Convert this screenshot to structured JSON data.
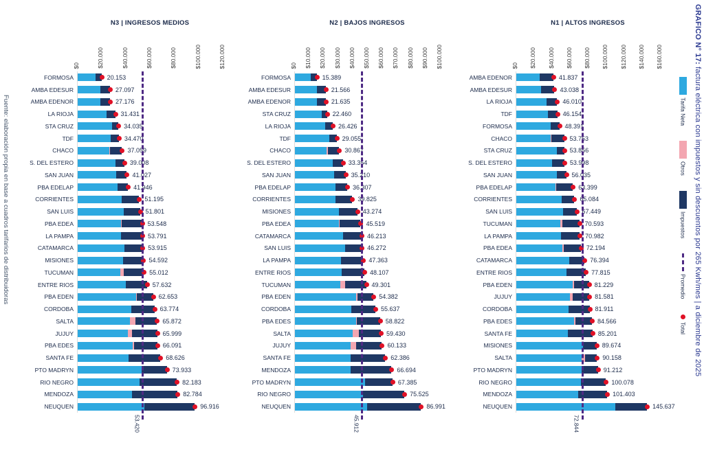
{
  "source_note": "Fuente: elaboración propia en base a cuadros tarifarios de distribuidoras",
  "side_title": {
    "bold": "GRAFICO N° 17: ",
    "rest": "factura eléctrica con impuestos y sin descuentos por 265 Kwh/mes | a diciembre de 2025"
  },
  "colors": {
    "tarifa_neta": "#2ea9e0",
    "otros": "#f3a6b1",
    "impuestos": "#1f3864",
    "total_dot": "#e01126",
    "promedio_line": "#4e2a84",
    "title_text": "#1b2a4a",
    "side_title_text": "#2b3990",
    "source_text": "#44546a"
  },
  "legend": {
    "items": [
      {
        "label": "Tarifa Neta",
        "swatch": "rect",
        "color": "#2ea9e0"
      },
      {
        "label": "Otros",
        "swatch": "rect",
        "color": "#f3a6b1"
      },
      {
        "label": "Impuestos",
        "swatch": "rect",
        "color": "#1f3864"
      },
      {
        "label": "Promedio",
        "swatch": "dashed-line",
        "color": "#4e2a84"
      },
      {
        "label": "Total",
        "swatch": "dot",
        "color": "#e01126"
      }
    ]
  },
  "chart_data": [
    {
      "type": "bar",
      "orientation": "horizontal",
      "stacked": true,
      "title": "N3 | INGRESOS MEDIOS",
      "series_names": [
        "Tarifa Neta",
        "Otros",
        "Impuestos"
      ],
      "axis_max": 120000,
      "axis_step": 20000,
      "tick_labels": [
        "$0",
        "$20.000",
        "$40.000",
        "$60.000",
        "$80.000",
        "$100.000",
        "$120.000"
      ],
      "promedio": 53420,
      "promedio_label": "53.420",
      "rows": [
        {
          "label": "FORMOSA",
          "total": 20153,
          "total_label": "20.153",
          "neta_est": 15000,
          "otros_est": 0
        },
        {
          "label": "AMBA EDESUR",
          "total": 27097,
          "total_label": "27.097",
          "neta_est": 19000,
          "otros_est": 0
        },
        {
          "label": "AMBA EDENOR",
          "total": 27176,
          "total_label": "27.176",
          "neta_est": 19000,
          "otros_est": 0
        },
        {
          "label": "LA RIOJA",
          "total": 31431,
          "total_label": "31.431",
          "neta_est": 24500,
          "otros_est": 0
        },
        {
          "label": "STA CRUZ",
          "total": 34035,
          "total_label": "34.035",
          "neta_est": 29000,
          "otros_est": 0
        },
        {
          "label": "TDF",
          "total": 34470,
          "total_label": "34.470",
          "neta_est": 28000,
          "otros_est": 0
        },
        {
          "label": "CHACO",
          "total": 37059,
          "total_label": "37.059",
          "neta_est": 26500,
          "otros_est": 800
        },
        {
          "label": "S. DEL ESTERO",
          "total": 39008,
          "total_label": "39.008",
          "neta_est": 31500,
          "otros_est": 0
        },
        {
          "label": "SAN JUAN",
          "total": 41027,
          "total_label": "41.027",
          "neta_est": 32500,
          "otros_est": 0
        },
        {
          "label": "PBA EDELAP",
          "total": 41946,
          "total_label": "41.946",
          "neta_est": 33500,
          "otros_est": 0
        },
        {
          "label": "CORRIENTES",
          "total": 51195,
          "total_label": "51.195",
          "neta_est": 37000,
          "otros_est": 0
        },
        {
          "label": "SAN LUIS",
          "total": 51801,
          "total_label": "51.801",
          "neta_est": 38500,
          "otros_est": 0
        },
        {
          "label": "PBA EDEA",
          "total": 53548,
          "total_label": "53.548",
          "neta_est": 36500,
          "otros_est": 500
        },
        {
          "label": "LA PAMPA",
          "total": 53791,
          "total_label": "53.791",
          "neta_est": 36000,
          "otros_est": 0
        },
        {
          "label": "CATAMARCA",
          "total": 53915,
          "total_label": "53.915",
          "neta_est": 39000,
          "otros_est": 0
        },
        {
          "label": "MISIONES",
          "total": 54592,
          "total_label": "54.592",
          "neta_est": 38000,
          "otros_est": 0
        },
        {
          "label": "TUCUMAN",
          "total": 55012,
          "total_label": "55.012",
          "neta_est": 35500,
          "otros_est": 3000
        },
        {
          "label": "ENTRE RIOS",
          "total": 57632,
          "total_label": "57.632",
          "neta_est": 40000,
          "otros_est": 0
        },
        {
          "label": "PBA EDEN",
          "total": 62653,
          "total_label": "62.653",
          "neta_est": 48500,
          "otros_est": 800
        },
        {
          "label": "CORDOBA",
          "total": 63774,
          "total_label": "63.774",
          "neta_est": 44500,
          "otros_est": 0
        },
        {
          "label": "SALTA",
          "total": 65872,
          "total_label": "65.872",
          "neta_est": 43500,
          "otros_est": 4800
        },
        {
          "label": "JUJUY",
          "total": 65999,
          "total_label": "65.999",
          "neta_est": 42000,
          "otros_est": 3500
        },
        {
          "label": "PBA EDES",
          "total": 66091,
          "total_label": "66.091",
          "neta_est": 46000,
          "otros_est": 900
        },
        {
          "label": "SANTA FE",
          "total": 68626,
          "total_label": "68.626",
          "neta_est": 42500,
          "otros_est": 0
        },
        {
          "label": "PTO MADRYN",
          "total": 73933,
          "total_label": "73.933",
          "neta_est": 53000,
          "otros_est": 0
        },
        {
          "label": "RIO NEGRO",
          "total": 82183,
          "total_label": "82.183",
          "neta_est": 51500,
          "otros_est": 0
        },
        {
          "label": "MENDOZA",
          "total": 82784,
          "total_label": "82.784",
          "neta_est": 45500,
          "otros_est": 0
        },
        {
          "label": "NEUQUEN",
          "total": 96916,
          "total_label": "96.916",
          "neta_est": 55500,
          "otros_est": 0
        }
      ]
    },
    {
      "type": "bar",
      "orientation": "horizontal",
      "stacked": true,
      "title": "N2 | BAJOS INGRESOS",
      "series_names": [
        "Tarifa Neta",
        "Otros",
        "Impuestos"
      ],
      "axis_max": 100000,
      "axis_step": 10000,
      "tick_labels": [
        "$0",
        "$10.000",
        "$20.000",
        "$30.000",
        "$40.000",
        "$50.000",
        "$60.000",
        "$70.000",
        "$80.000",
        "$90.000",
        "$100.000"
      ],
      "promedio": 45912,
      "promedio_label": "45.912",
      "rows": [
        {
          "label": "FORMOSA",
          "total": 15389,
          "total_label": "15.389",
          "neta_est": 11500,
          "otros_est": 0
        },
        {
          "label": "AMBA EDESUR",
          "total": 21566,
          "total_label": "21.566",
          "neta_est": 15500,
          "otros_est": 0
        },
        {
          "label": "AMBA EDENOR",
          "total": 21635,
          "total_label": "21.635",
          "neta_est": 15500,
          "otros_est": 0
        },
        {
          "label": "STA CRUZ",
          "total": 22460,
          "total_label": "22.460",
          "neta_est": 19000,
          "otros_est": 0
        },
        {
          "label": "LA RIOJA",
          "total": 26426,
          "total_label": "26.426",
          "neta_est": 21000,
          "otros_est": 0
        },
        {
          "label": "TDF",
          "total": 29055,
          "total_label": "29.055",
          "neta_est": 24000,
          "otros_est": 0
        },
        {
          "label": "CHACO",
          "total": 30867,
          "total_label": "30.867",
          "neta_est": 22000,
          "otros_est": 900
        },
        {
          "label": "S. DEL ESTERO",
          "total": 33354,
          "total_label": "33.354",
          "neta_est": 26500,
          "otros_est": 0
        },
        {
          "label": "SAN JUAN",
          "total": 35210,
          "total_label": "35.210",
          "neta_est": 27500,
          "otros_est": 0
        },
        {
          "label": "PBA EDELAP",
          "total": 36307,
          "total_label": "36.307",
          "neta_est": 28500,
          "otros_est": 0
        },
        {
          "label": "CORRIENTES",
          "total": 39825,
          "total_label": "39.825",
          "neta_est": 28500,
          "otros_est": 0
        },
        {
          "label": "MISIONES",
          "total": 43274,
          "total_label": "43.274",
          "neta_est": 30500,
          "otros_est": 0
        },
        {
          "label": "PBA EDEA",
          "total": 45519,
          "total_label": "45.519",
          "neta_est": 30500,
          "otros_est": 800
        },
        {
          "label": "CATAMARCA",
          "total": 46213,
          "total_label": "46.213",
          "neta_est": 33500,
          "otros_est": 0
        },
        {
          "label": "SAN LUIS",
          "total": 46272,
          "total_label": "46.272",
          "neta_est": 35000,
          "otros_est": 0
        },
        {
          "label": "LA PAMPA",
          "total": 47363,
          "total_label": "47.363",
          "neta_est": 32000,
          "otros_est": 0
        },
        {
          "label": "ENTRE RIOS",
          "total": 48107,
          "total_label": "48.107",
          "neta_est": 32500,
          "otros_est": 0
        },
        {
          "label": "TUCUMAN",
          "total": 49301,
          "total_label": "49.301",
          "neta_est": 31500,
          "otros_est": 3200
        },
        {
          "label": "PBA EDEN",
          "total": 54382,
          "total_label": "54.382",
          "neta_est": 42500,
          "otros_est": 700
        },
        {
          "label": "CORDOBA",
          "total": 55637,
          "total_label": "55.637",
          "neta_est": 39000,
          "otros_est": 0
        },
        {
          "label": "PBA EDES",
          "total": 58822,
          "total_label": "58.822",
          "neta_est": 42500,
          "otros_est": 600
        },
        {
          "label": "SALTA",
          "total": 59430,
          "total_label": "59.430",
          "neta_est": 40000,
          "otros_est": 4300
        },
        {
          "label": "JUJUY",
          "total": 60133,
          "total_label": "60.133",
          "neta_est": 38500,
          "otros_est": 3800
        },
        {
          "label": "SANTA FE",
          "total": 62386,
          "total_label": "62.386",
          "neta_est": 38500,
          "otros_est": 0
        },
        {
          "label": "MENDOZA",
          "total": 66694,
          "total_label": "66.694",
          "neta_est": 38500,
          "otros_est": 0
        },
        {
          "label": "PTO MADRYN",
          "total": 67385,
          "total_label": "67.385",
          "neta_est": 48500,
          "otros_est": 0
        },
        {
          "label": "RIO NEGRO",
          "total": 75525,
          "total_label": "75.525",
          "neta_est": 47000,
          "otros_est": 0
        },
        {
          "label": "NEUQUEN",
          "total": 86991,
          "total_label": "86.991",
          "neta_est": 50000,
          "otros_est": 0
        }
      ]
    },
    {
      "type": "bar",
      "orientation": "horizontal",
      "stacked": true,
      "title": "N1 | ALTOS INGRESOS",
      "series_names": [
        "Tarifa Neta",
        "Otros",
        "Impuestos"
      ],
      "axis_max": 160000,
      "axis_step": 20000,
      "tick_labels": [
        "$0",
        "$20.000",
        "$40.000",
        "$60.000",
        "$80.000",
        "$100.000",
        "$120.000",
        "$140.000",
        "$160.000"
      ],
      "promedio": 72844,
      "promedio_label": "72.844",
      "rows": [
        {
          "label": "AMBA EDENOR",
          "total": 41837,
          "total_label": "41.837",
          "neta_est": 27000,
          "otros_est": 0
        },
        {
          "label": "AMBA EDESUR",
          "total": 43038,
          "total_label": "43.038",
          "neta_est": 28000,
          "otros_est": 0
        },
        {
          "label": "LA RIOJA",
          "total": 46010,
          "total_label": "46.010",
          "neta_est": 34500,
          "otros_est": 0
        },
        {
          "label": "TDF",
          "total": 46154,
          "total_label": "46.154",
          "neta_est": 36000,
          "otros_est": 0
        },
        {
          "label": "FORMOSA",
          "total": 48391,
          "total_label": "48.391",
          "neta_est": 38500,
          "otros_est": 0
        },
        {
          "label": "CHACO",
          "total": 53753,
          "total_label": "53.753",
          "neta_est": 39000,
          "otros_est": 900
        },
        {
          "label": "STA CRUZ",
          "total": 53856,
          "total_label": "53.856",
          "neta_est": 45500,
          "otros_est": 0
        },
        {
          "label": "S. DEL ESTERO",
          "total": 53998,
          "total_label": "53.998",
          "neta_est": 40500,
          "otros_est": 0
        },
        {
          "label": "SAN JUAN",
          "total": 56035,
          "total_label": "56.035",
          "neta_est": 46000,
          "otros_est": 0
        },
        {
          "label": "PBA EDELAP",
          "total": 63399,
          "total_label": "63.399",
          "neta_est": 44000,
          "otros_est": 1000
        },
        {
          "label": "CORRIENTES",
          "total": 65084,
          "total_label": "65.084",
          "neta_est": 51000,
          "otros_est": 0
        },
        {
          "label": "SAN LUIS",
          "total": 67449,
          "total_label": "67.449",
          "neta_est": 52500,
          "otros_est": 0
        },
        {
          "label": "TUCUMAN",
          "total": 70593,
          "total_label": "70.593",
          "neta_est": 49500,
          "otros_est": 2200
        },
        {
          "label": "LA PAMPA",
          "total": 70982,
          "total_label": "70.982",
          "neta_est": 50000,
          "otros_est": 0
        },
        {
          "label": "PBA EDEA",
          "total": 72194,
          "total_label": "72.194",
          "neta_est": 52000,
          "otros_est": 1000
        },
        {
          "label": "CATAMARCA",
          "total": 76394,
          "total_label": "76.394",
          "neta_est": 59500,
          "otros_est": 0
        },
        {
          "label": "ENTRE RIOS",
          "total": 77815,
          "total_label": "77.815",
          "neta_est": 56000,
          "otros_est": 0
        },
        {
          "label": "PBA EDEN",
          "total": 81229,
          "total_label": "81.229",
          "neta_est": 63500,
          "otros_est": 1000
        },
        {
          "label": "JUJUY",
          "total": 81581,
          "total_label": "81.581",
          "neta_est": 60000,
          "otros_est": 3300
        },
        {
          "label": "CORDOBA",
          "total": 81911,
          "total_label": "81.911",
          "neta_est": 59000,
          "otros_est": 0
        },
        {
          "label": "PBA EDES",
          "total": 84566,
          "total_label": "84.566",
          "neta_est": 65000,
          "otros_est": 1000
        },
        {
          "label": "SANTA FE",
          "total": 85201,
          "total_label": "85.201",
          "neta_est": 58000,
          "otros_est": 0
        },
        {
          "label": "MISIONES",
          "total": 89674,
          "total_label": "89.674",
          "neta_est": 74500,
          "otros_est": 0
        },
        {
          "label": "SALTA",
          "total": 90158,
          "total_label": "90.158",
          "neta_est": 73500,
          "otros_est": 3600
        },
        {
          "label": "PTO MADRYN",
          "total": 91212,
          "total_label": "91.212",
          "neta_est": 73000,
          "otros_est": 0
        },
        {
          "label": "RIO NEGRO",
          "total": 100078,
          "total_label": "100.078",
          "neta_est": 72000,
          "otros_est": 0
        },
        {
          "label": "MENDOZA",
          "total": 101403,
          "total_label": "101.403",
          "neta_est": 69000,
          "otros_est": 0
        },
        {
          "label": "NEUQUEN",
          "total": 145637,
          "total_label": "145.637",
          "neta_est": 110500,
          "otros_est": 0
        }
      ]
    }
  ]
}
